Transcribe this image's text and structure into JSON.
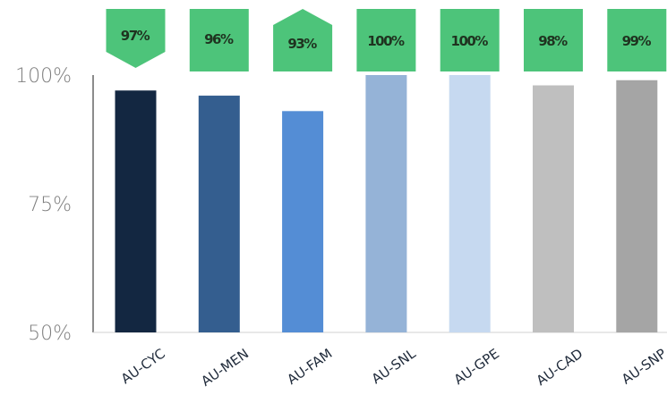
{
  "chart_data": {
    "type": "bar",
    "title": "",
    "xlabel": "",
    "ylabel": "",
    "categories": [
      "AU-CYC",
      "AU-MEN",
      "AU-FAM",
      "AU-SNL",
      "AU-GPE",
      "AU-CAD",
      "AU-SNP"
    ],
    "values": [
      97,
      96,
      93,
      100,
      100,
      98,
      99
    ],
    "value_labels": [
      "97%",
      "96%",
      "93%",
      "100%",
      "100%",
      "98%",
      "99%"
    ],
    "bar_colors": [
      "#132741",
      "#345e8f",
      "#548dd5",
      "#95b3d7",
      "#c6d9f0",
      "#bfbfbf",
      "#a5a5a5"
    ],
    "badge_color": "#4dc47a",
    "ylim": [
      50,
      100
    ],
    "yticks": [
      50,
      75,
      100
    ],
    "ytick_labels": [
      "50%",
      "75%",
      "100%"
    ],
    "grid": false,
    "legend": "none"
  }
}
